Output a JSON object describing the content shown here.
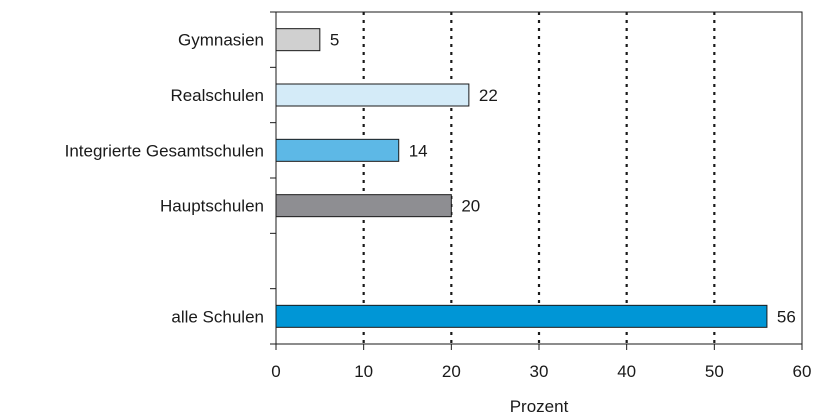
{
  "chart_data": {
    "type": "bar",
    "orientation": "horizontal",
    "categories": [
      "Gymnasien",
      "Realschulen",
      "Integrierte Gesamtschulen",
      "Hauptschulen",
      "alle Schulen"
    ],
    "values": [
      5,
      22,
      14,
      20,
      56
    ],
    "value_labels": [
      "5",
      "22",
      "14",
      "20",
      "56"
    ],
    "bar_colors": [
      "#d0d0d0",
      "#d4ebf8",
      "#5db8e6",
      "#8e8e92",
      "#0096d6"
    ],
    "xlabel": "Prozent",
    "ylabel": "",
    "xlim": [
      0,
      60
    ],
    "xticks": [
      0,
      10,
      20,
      30,
      40,
      50,
      60
    ],
    "grid": "vertical dotted",
    "legend": "none"
  }
}
